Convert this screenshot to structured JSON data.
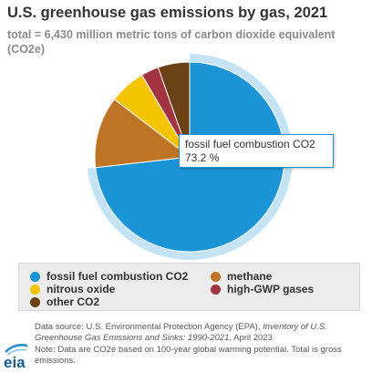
{
  "header": {
    "title": "U.S. greenhouse gas emissions by gas, 2021",
    "subtitle": "total = 6,430 million metric tons of carbon dioxide equivalent (CO2e)"
  },
  "chart_data": {
    "type": "pie",
    "title": "U.S. greenhouse gas emissions by gas, 2021",
    "subtitle": "total = 6,430 million metric tons of carbon dioxide equivalent (CO2e)",
    "unit": "%",
    "slices": [
      {
        "label": "fossil fuel combustion CO2",
        "value": 73.2,
        "color": "#1b94d6"
      },
      {
        "label": "methane",
        "value": 12.2,
        "color": "#bf7325"
      },
      {
        "label": "nitrous oxide",
        "value": 6.2,
        "color": "#f5c400"
      },
      {
        "label": "high-GWP gases",
        "value": 3.0,
        "color": "#a33340"
      },
      {
        "label": "other CO2",
        "value": 5.4,
        "color": "#6b4216"
      }
    ],
    "highlighted_slice": 0,
    "legend_position": "bottom"
  },
  "tooltip": {
    "label": "fossil fuel combustion CO2",
    "value": "73.2 %"
  },
  "footer": {
    "source_prefix": "Data source: U.S. Environmental Protection Agency (EPA), ",
    "source_title": "Inventory of U.S. Greenhouse Gas Emissions and Sinks: 1990-2021",
    "source_suffix": ", April 2023",
    "note": "Note: Data are CO2e based on 100-year global warming potential. Total is gross emissions."
  },
  "logo": {
    "text": "eia",
    "icon": "eia-logo"
  }
}
